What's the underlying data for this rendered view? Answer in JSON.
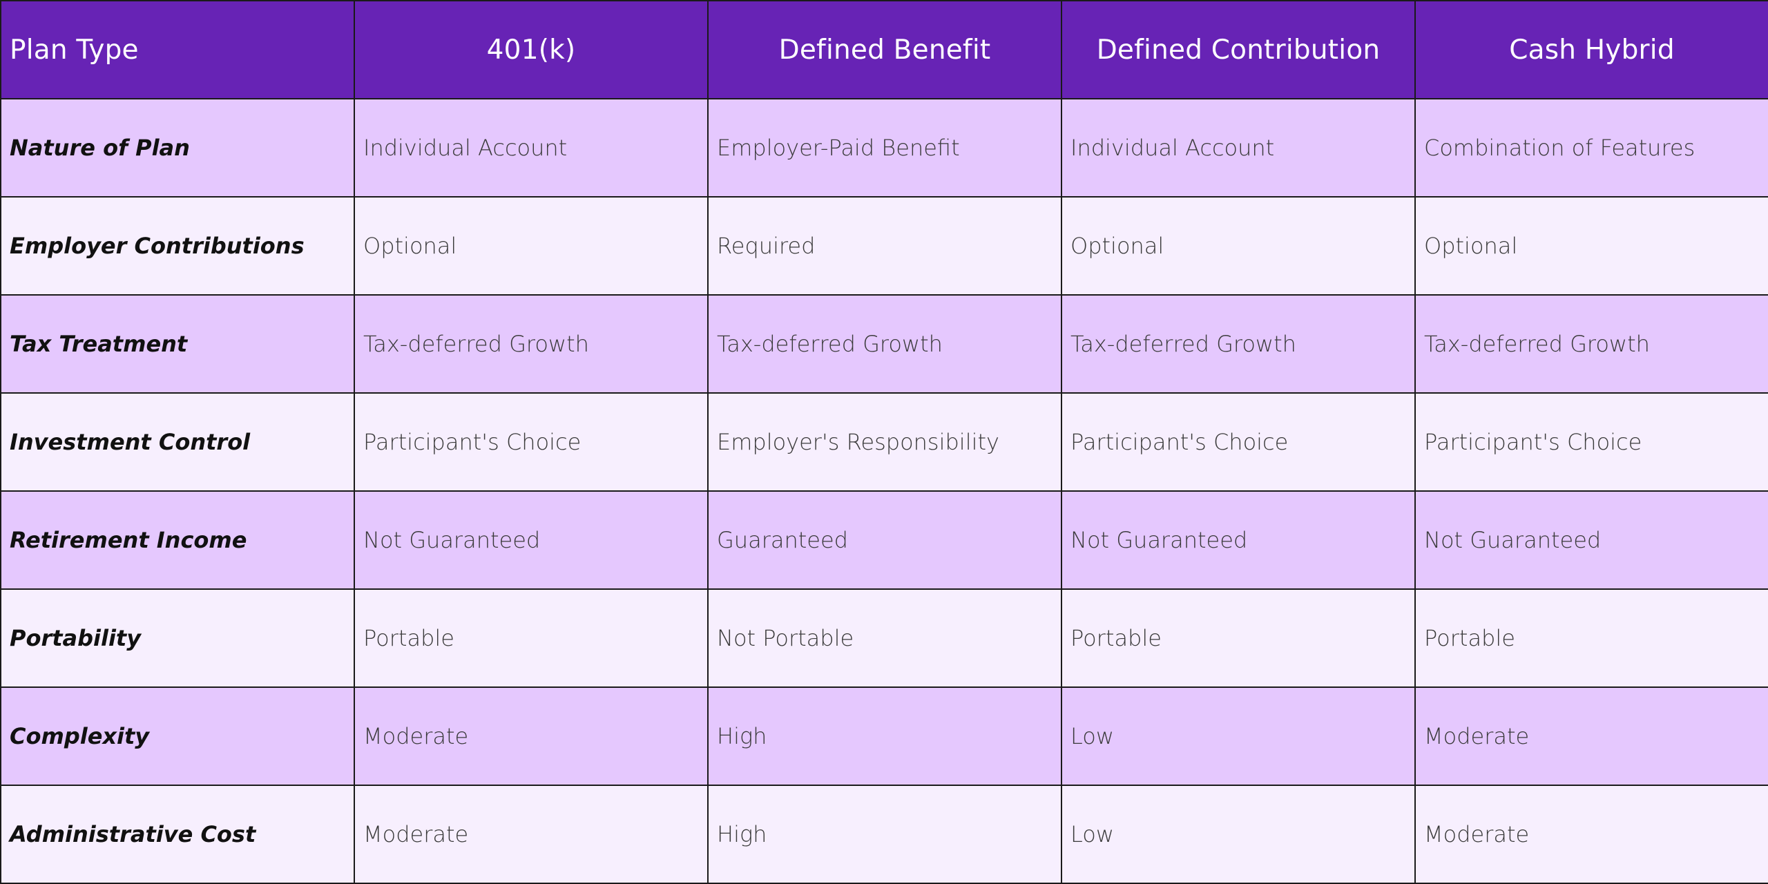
{
  "table": {
    "header": [
      "Plan Type",
      "401(k)",
      "Defined Benefit",
      "Defined Contribution",
      "Cash Hybrid"
    ],
    "rows": [
      {
        "label": "Nature of Plan",
        "values": [
          "Individual Account",
          "Employer-Paid Benefit",
          "Individual Account",
          "Combination of Features"
        ]
      },
      {
        "label": "Employer Contributions",
        "values": [
          "Optional",
          "Required",
          "Optional",
          "Optional"
        ]
      },
      {
        "label": "Tax Treatment",
        "values": [
          "Tax-deferred Growth",
          "Tax-deferred Growth",
          "Tax-deferred Growth",
          "Tax-deferred Growth"
        ]
      },
      {
        "label": "Investment Control",
        "values": [
          "Participant's Choice",
          "Employer's Responsibility",
          "Participant's Choice",
          "Participant's Choice"
        ]
      },
      {
        "label": "Retirement Income",
        "values": [
          "Not Guaranteed",
          "Guaranteed",
          "Not Guaranteed",
          "Not Guaranteed"
        ]
      },
      {
        "label": "Portability",
        "values": [
          "Portable",
          "Not Portable",
          "Portable",
          "Portable"
        ]
      },
      {
        "label": "Complexity",
        "values": [
          "Moderate",
          "High",
          "Low",
          "Moderate"
        ]
      },
      {
        "label": "Administrative Cost",
        "values": [
          "Moderate",
          "High",
          "Low",
          "Moderate"
        ]
      }
    ]
  },
  "colors": {
    "header_bg": "#6723b5",
    "header_text": "#ffffff",
    "row_odd_bg": "#e5c8fe",
    "row_even_bg": "#f7effe",
    "border": "#1a1a1a"
  }
}
